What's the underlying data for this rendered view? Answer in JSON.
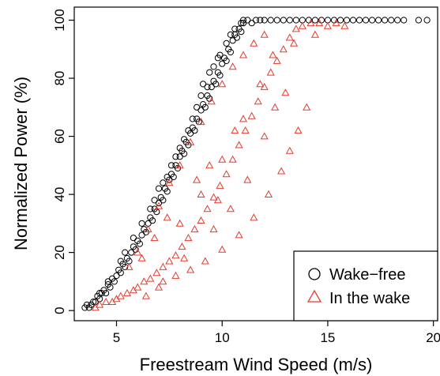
{
  "chart_data": {
    "type": "scatter",
    "title": "",
    "xlabel": "Freestream Wind Speed (m/s)",
    "ylabel": "Normalized Power (%)",
    "xlim": [
      3.0,
      20.2
    ],
    "ylim": [
      -3.5,
      104.5
    ],
    "xticks": [
      5,
      10,
      15,
      20
    ],
    "yticks": [
      0,
      20,
      40,
      60,
      80,
      100
    ],
    "xtick_labels": [
      "5",
      "10",
      "15",
      "20"
    ],
    "ytick_labels": [
      "0",
      "20",
      "40",
      "60",
      "80",
      "100"
    ],
    "grid": false,
    "legend_position": "bottom-right",
    "series": [
      {
        "name": "Wake−free",
        "marker": "circle",
        "color": "#000000",
        "points": [
          [
            3.5,
            1
          ],
          [
            3.6,
            2
          ],
          [
            3.7,
            1
          ],
          [
            3.8,
            2
          ],
          [
            3.9,
            3
          ],
          [
            4.0,
            3
          ],
          [
            4.1,
            5
          ],
          [
            4.2,
            4
          ],
          [
            4.3,
            6
          ],
          [
            4.4,
            7
          ],
          [
            4.5,
            6
          ],
          [
            4.6,
            9
          ],
          [
            4.7,
            8
          ],
          [
            4.8,
            11
          ],
          [
            4.9,
            10
          ],
          [
            5.0,
            12
          ],
          [
            5.1,
            14
          ],
          [
            5.2,
            13
          ],
          [
            5.3,
            16
          ],
          [
            5.4,
            15
          ],
          [
            5.5,
            18
          ],
          [
            5.6,
            17
          ],
          [
            5.7,
            20
          ],
          [
            5.8,
            22
          ],
          [
            5.9,
            21
          ],
          [
            6.0,
            24
          ],
          [
            6.1,
            23
          ],
          [
            6.2,
            26
          ],
          [
            6.3,
            28
          ],
          [
            6.4,
            27
          ],
          [
            6.5,
            30
          ],
          [
            6.6,
            32
          ],
          [
            6.7,
            31
          ],
          [
            6.8,
            35
          ],
          [
            6.9,
            34
          ],
          [
            7.0,
            37
          ],
          [
            7.1,
            39
          ],
          [
            7.2,
            38
          ],
          [
            7.3,
            42
          ],
          [
            7.4,
            41
          ],
          [
            7.5,
            45
          ],
          [
            7.6,
            47
          ],
          [
            7.7,
            46
          ],
          [
            7.8,
            50
          ],
          [
            7.9,
            49
          ],
          [
            8.0,
            53
          ],
          [
            8.1,
            55
          ],
          [
            8.2,
            54
          ],
          [
            8.3,
            58
          ],
          [
            8.4,
            57
          ],
          [
            8.5,
            61
          ],
          [
            8.6,
            63
          ],
          [
            8.7,
            62
          ],
          [
            8.8,
            66
          ],
          [
            8.9,
            65
          ],
          [
            9.0,
            69
          ],
          [
            9.1,
            71
          ],
          [
            9.2,
            70
          ],
          [
            9.3,
            74
          ],
          [
            9.4,
            73
          ],
          [
            9.5,
            77
          ],
          [
            9.6,
            79
          ],
          [
            9.7,
            78
          ],
          [
            9.8,
            82
          ],
          [
            9.9,
            81
          ],
          [
            10.0,
            85
          ],
          [
            10.1,
            87
          ],
          [
            10.2,
            86
          ],
          [
            10.3,
            90
          ],
          [
            10.4,
            89
          ],
          [
            10.5,
            93
          ],
          [
            10.6,
            95
          ],
          [
            10.7,
            94
          ],
          [
            10.8,
            97
          ],
          [
            10.9,
            96
          ],
          [
            11.0,
            99
          ],
          [
            11.2,
            100
          ],
          [
            11.4,
            99
          ],
          [
            11.6,
            100
          ],
          [
            11.8,
            100
          ],
          [
            12.0,
            100
          ],
          [
            12.3,
            100
          ],
          [
            12.6,
            100
          ],
          [
            12.9,
            100
          ],
          [
            13.2,
            100
          ],
          [
            13.5,
            100
          ],
          [
            13.8,
            100
          ],
          [
            14.1,
            100
          ],
          [
            14.4,
            100
          ],
          [
            14.7,
            100
          ],
          [
            15.0,
            100
          ],
          [
            15.3,
            100
          ],
          [
            15.6,
            100
          ],
          [
            15.9,
            100
          ],
          [
            16.2,
            100
          ],
          [
            16.5,
            100
          ],
          [
            16.8,
            100
          ],
          [
            17.1,
            100
          ],
          [
            17.4,
            100
          ],
          [
            17.7,
            100
          ],
          [
            18.0,
            100
          ],
          [
            18.3,
            100
          ],
          [
            18.6,
            100
          ],
          [
            19.3,
            100
          ],
          [
            19.7,
            100
          ],
          [
            6.2,
            30
          ],
          [
            6.8,
            38
          ],
          [
            7.4,
            46
          ],
          [
            7.2,
            44
          ],
          [
            8.0,
            56
          ],
          [
            8.6,
            66
          ],
          [
            9.0,
            74
          ],
          [
            9.6,
            84
          ],
          [
            10.2,
            92
          ],
          [
            9.3,
            77
          ],
          [
            5.4,
            20
          ],
          [
            5.8,
            25
          ],
          [
            6.6,
            35
          ],
          [
            7.8,
            53
          ],
          [
            8.4,
            62
          ],
          [
            9.8,
            87
          ],
          [
            10.6,
            97
          ],
          [
            11.0,
            100
          ],
          [
            10.9,
            99
          ],
          [
            8.8,
            70
          ],
          [
            9.1,
            78
          ],
          [
            9.4,
            82
          ],
          [
            9.9,
            88
          ],
          [
            10.4,
            95
          ],
          [
            7.0,
            42
          ],
          [
            7.6,
            50
          ],
          [
            8.2,
            59
          ],
          [
            5.2,
            17
          ],
          [
            4.6,
            10
          ],
          [
            4.2,
            6
          ]
        ]
      },
      {
        "name": "In the wake",
        "marker": "triangle",
        "color": "#e53b2e",
        "points": [
          [
            4.0,
            1
          ],
          [
            4.2,
            2
          ],
          [
            4.5,
            3
          ],
          [
            4.8,
            3
          ],
          [
            5.0,
            4
          ],
          [
            5.2,
            5
          ],
          [
            5.5,
            6
          ],
          [
            5.8,
            7
          ],
          [
            6.0,
            8
          ],
          [
            6.3,
            10
          ],
          [
            6.6,
            11
          ],
          [
            6.9,
            13
          ],
          [
            7.2,
            15
          ],
          [
            7.5,
            17
          ],
          [
            7.8,
            19
          ],
          [
            8.1,
            22
          ],
          [
            8.4,
            25
          ],
          [
            8.7,
            28
          ],
          [
            9.0,
            31
          ],
          [
            9.3,
            35
          ],
          [
            9.6,
            39
          ],
          [
            9.9,
            43
          ],
          [
            10.2,
            47
          ],
          [
            10.5,
            52
          ],
          [
            10.8,
            57
          ],
          [
            11.1,
            62
          ],
          [
            11.4,
            67
          ],
          [
            11.7,
            72
          ],
          [
            12.0,
            77
          ],
          [
            12.3,
            82
          ],
          [
            12.6,
            86
          ],
          [
            12.9,
            90
          ],
          [
            13.2,
            94
          ],
          [
            13.5,
            97
          ],
          [
            13.8,
            98
          ],
          [
            14.2,
            99
          ],
          [
            14.6,
            99
          ],
          [
            15.0,
            98
          ],
          [
            15.4,
            99
          ],
          [
            15.8,
            98
          ],
          [
            6.0,
            20
          ],
          [
            6.5,
            28
          ],
          [
            7.0,
            36
          ],
          [
            7.5,
            44
          ],
          [
            8.0,
            50
          ],
          [
            8.5,
            58
          ],
          [
            9.0,
            65
          ],
          [
            9.5,
            72
          ],
          [
            10.0,
            78
          ],
          [
            10.5,
            84
          ],
          [
            11.0,
            88
          ],
          [
            11.5,
            92
          ],
          [
            12.0,
            95
          ],
          [
            7.2,
            10
          ],
          [
            7.8,
            12
          ],
          [
            8.5,
            14
          ],
          [
            9.2,
            17
          ],
          [
            10.0,
            21
          ],
          [
            10.8,
            26
          ],
          [
            11.5,
            32
          ],
          [
            12.2,
            40
          ],
          [
            12.8,
            48
          ],
          [
            13.2,
            55
          ],
          [
            13.6,
            62
          ],
          [
            14.0,
            70
          ],
          [
            8.0,
            30
          ],
          [
            9.0,
            40
          ],
          [
            10.0,
            52
          ],
          [
            11.0,
            66
          ],
          [
            12.0,
            60
          ],
          [
            12.5,
            70
          ],
          [
            13.0,
            75
          ],
          [
            11.2,
            45
          ],
          [
            10.4,
            35
          ],
          [
            9.6,
            28
          ],
          [
            5.6,
            15
          ],
          [
            6.2,
            18
          ],
          [
            6.8,
            25
          ],
          [
            7.4,
            32
          ],
          [
            8.8,
            45
          ],
          [
            9.4,
            50
          ],
          [
            10.6,
            62
          ],
          [
            11.8,
            78
          ],
          [
            12.4,
            88
          ],
          [
            13.4,
            92
          ],
          [
            14.4,
            95
          ],
          [
            6.4,
            5
          ],
          [
            7.0,
            8
          ],
          [
            8.2,
            18
          ],
          [
            9.8,
            38
          ]
        ]
      }
    ]
  },
  "legend": {
    "items": [
      {
        "label": "Wake−free",
        "color": "#000000",
        "marker": "circle"
      },
      {
        "label": "In the wake",
        "color": "#e53b2e",
        "marker": "triangle"
      }
    ]
  }
}
